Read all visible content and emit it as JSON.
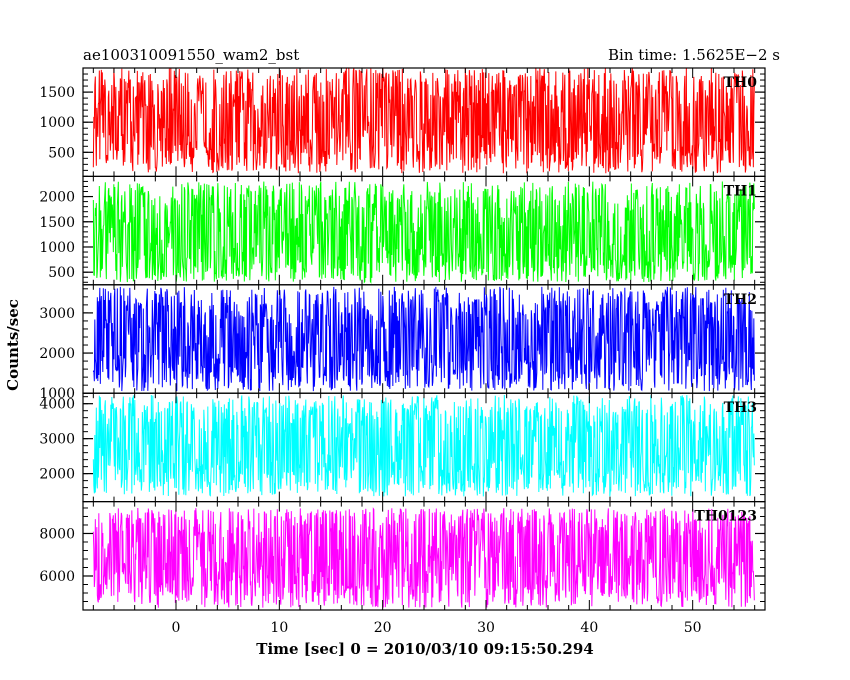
{
  "header": {
    "title_left": "ae100310091550_wam2_bst",
    "title_right": "Bin time: 1.5625E−2 s"
  },
  "chart_data": {
    "type": "line",
    "subtype": "stacked light curves (5 panels sharing the x-axis)",
    "xlabel": "Time [sec] 0 = 2010/03/10 09:15:50.294",
    "ylabel": "Counts/sec",
    "xlim": [
      -9,
      57
    ],
    "x_range_data": [
      -8,
      56
    ],
    "xticks": [
      0,
      10,
      20,
      30,
      40,
      50
    ],
    "xtick_labels": [
      "0",
      "10",
      "20",
      "30",
      "40",
      "50"
    ],
    "grid": false,
    "panels": [
      {
        "name": "TH0",
        "color": "#ff0000",
        "ylim": [
          100,
          1900
        ],
        "yticks": [
          500,
          1000,
          1500
        ],
        "ytick_labels": [
          "500",
          "1000",
          "1500"
        ],
        "signal_mean": 1000,
        "signal_low": 150,
        "signal_high": 1900
      },
      {
        "name": "TH1",
        "color": "#00ff00",
        "ylim": [
          250,
          2400
        ],
        "yticks": [
          500,
          1000,
          1500,
          2000
        ],
        "ytick_labels": [
          "500",
          "1000",
          "1500",
          "2000"
        ],
        "signal_mean": 1150,
        "signal_low": 300,
        "signal_high": 2300
      },
      {
        "name": "TH2",
        "color": "#0000ff",
        "ylim": [
          1000,
          3700
        ],
        "yticks": [
          1000,
          2000,
          3000
        ],
        "ytick_labels": [
          "1000",
          "2000",
          "3000"
        ],
        "signal_mean": 2300,
        "signal_low": 1050,
        "signal_high": 3650
      },
      {
        "name": "TH3",
        "color": "#00ffff",
        "ylim": [
          1200,
          4300
        ],
        "yticks": [
          2000,
          3000,
          4000
        ],
        "ytick_labels": [
          "2000",
          "3000",
          "4000"
        ],
        "signal_mean": 2700,
        "signal_low": 1350,
        "signal_high": 4250
      },
      {
        "name": "TH0123",
        "color": "#ff00ff",
        "ylim": [
          4400,
          9500
        ],
        "yticks": [
          6000,
          8000
        ],
        "ytick_labels": [
          "6000",
          "8000"
        ],
        "signal_mean": 7100,
        "signal_low": 4500,
        "signal_high": 9200
      }
    ]
  }
}
